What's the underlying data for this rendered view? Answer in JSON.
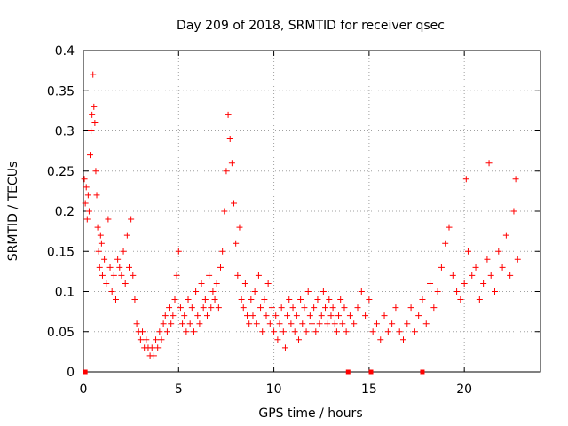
{
  "chart_data": {
    "type": "scatter",
    "title": "Day 209 of 2018, SRMTID for receiver qsec",
    "xlabel": "GPS time / hours",
    "ylabel": "SRMTID / TECUs",
    "xlim": [
      0,
      24
    ],
    "ylim": [
      0,
      0.4
    ],
    "grid": true,
    "marker": "+",
    "x_ticks": [
      0,
      5,
      10,
      15,
      20
    ],
    "x_tick_labels": [
      "0",
      "5",
      "10",
      "15",
      "20"
    ],
    "y_ticks": [
      0,
      0.05,
      0.1,
      0.15,
      0.2,
      0.25,
      0.3,
      0.35,
      0.4
    ],
    "y_tick_labels": [
      "0",
      "0.05",
      "0.1",
      "0.15",
      "0.2",
      "0.25",
      "0.3",
      "0.35",
      "0.4"
    ],
    "color": "#ff0000",
    "gap_markers": [
      0.1,
      13.9,
      15.1,
      17.8
    ],
    "series": [
      {
        "name": "SRMTID",
        "points": [
          [
            0.05,
            0.24
          ],
          [
            0.1,
            0.21
          ],
          [
            0.15,
            0.23
          ],
          [
            0.2,
            0.19
          ],
          [
            0.25,
            0.22
          ],
          [
            0.3,
            0.2
          ],
          [
            0.35,
            0.27
          ],
          [
            0.4,
            0.3
          ],
          [
            0.45,
            0.32
          ],
          [
            0.5,
            0.37
          ],
          [
            0.55,
            0.33
          ],
          [
            0.6,
            0.31
          ],
          [
            0.65,
            0.25
          ],
          [
            0.7,
            0.22
          ],
          [
            0.75,
            0.18
          ],
          [
            0.8,
            0.15
          ],
          [
            0.85,
            0.13
          ],
          [
            0.9,
            0.17
          ],
          [
            0.95,
            0.16
          ],
          [
            1.0,
            0.12
          ],
          [
            1.1,
            0.14
          ],
          [
            1.2,
            0.11
          ],
          [
            1.3,
            0.19
          ],
          [
            1.4,
            0.13
          ],
          [
            1.5,
            0.1
          ],
          [
            1.6,
            0.12
          ],
          [
            1.7,
            0.09
          ],
          [
            1.8,
            0.14
          ],
          [
            1.9,
            0.13
          ],
          [
            2.0,
            0.12
          ],
          [
            2.1,
            0.15
          ],
          [
            2.2,
            0.11
          ],
          [
            2.3,
            0.17
          ],
          [
            2.4,
            0.13
          ],
          [
            2.5,
            0.19
          ],
          [
            2.6,
            0.12
          ],
          [
            2.7,
            0.09
          ],
          [
            2.8,
            0.06
          ],
          [
            2.9,
            0.05
          ],
          [
            3.0,
            0.04
          ],
          [
            3.1,
            0.05
          ],
          [
            3.2,
            0.03
          ],
          [
            3.3,
            0.04
          ],
          [
            3.4,
            0.03
          ],
          [
            3.5,
            0.02
          ],
          [
            3.6,
            0.03
          ],
          [
            3.7,
            0.02
          ],
          [
            3.8,
            0.04
          ],
          [
            3.9,
            0.03
          ],
          [
            4.0,
            0.05
          ],
          [
            4.1,
            0.04
          ],
          [
            4.2,
            0.06
          ],
          [
            4.3,
            0.07
          ],
          [
            4.4,
            0.05
          ],
          [
            4.5,
            0.08
          ],
          [
            4.6,
            0.06
          ],
          [
            4.7,
            0.07
          ],
          [
            4.8,
            0.09
          ],
          [
            4.9,
            0.12
          ],
          [
            5.0,
            0.15
          ],
          [
            5.1,
            0.08
          ],
          [
            5.2,
            0.06
          ],
          [
            5.3,
            0.07
          ],
          [
            5.4,
            0.05
          ],
          [
            5.5,
            0.09
          ],
          [
            5.6,
            0.06
          ],
          [
            5.7,
            0.08
          ],
          [
            5.8,
            0.05
          ],
          [
            5.9,
            0.1
          ],
          [
            6.0,
            0.07
          ],
          [
            6.1,
            0.06
          ],
          [
            6.2,
            0.11
          ],
          [
            6.3,
            0.08
          ],
          [
            6.4,
            0.09
          ],
          [
            6.5,
            0.07
          ],
          [
            6.6,
            0.12
          ],
          [
            6.7,
            0.08
          ],
          [
            6.8,
            0.1
          ],
          [
            6.9,
            0.09
          ],
          [
            7.0,
            0.11
          ],
          [
            7.1,
            0.08
          ],
          [
            7.2,
            0.13
          ],
          [
            7.3,
            0.15
          ],
          [
            7.4,
            0.2
          ],
          [
            7.5,
            0.25
          ],
          [
            7.6,
            0.32
          ],
          [
            7.7,
            0.29
          ],
          [
            7.8,
            0.26
          ],
          [
            7.9,
            0.21
          ],
          [
            8.0,
            0.16
          ],
          [
            8.1,
            0.12
          ],
          [
            8.2,
            0.18
          ],
          [
            8.3,
            0.09
          ],
          [
            8.4,
            0.08
          ],
          [
            8.5,
            0.11
          ],
          [
            8.6,
            0.07
          ],
          [
            8.7,
            0.06
          ],
          [
            8.8,
            0.09
          ],
          [
            8.9,
            0.07
          ],
          [
            9.0,
            0.1
          ],
          [
            9.1,
            0.06
          ],
          [
            9.2,
            0.12
          ],
          [
            9.3,
            0.08
          ],
          [
            9.4,
            0.05
          ],
          [
            9.5,
            0.09
          ],
          [
            9.6,
            0.07
          ],
          [
            9.7,
            0.11
          ],
          [
            9.8,
            0.06
          ],
          [
            9.9,
            0.08
          ],
          [
            10.0,
            0.05
          ],
          [
            10.1,
            0.07
          ],
          [
            10.2,
            0.04
          ],
          [
            10.3,
            0.06
          ],
          [
            10.4,
            0.08
          ],
          [
            10.5,
            0.05
          ],
          [
            10.6,
            0.03
          ],
          [
            10.7,
            0.07
          ],
          [
            10.8,
            0.09
          ],
          [
            10.9,
            0.06
          ],
          [
            11.0,
            0.08
          ],
          [
            11.1,
            0.05
          ],
          [
            11.2,
            0.07
          ],
          [
            11.3,
            0.04
          ],
          [
            11.4,
            0.09
          ],
          [
            11.5,
            0.06
          ],
          [
            11.6,
            0.08
          ],
          [
            11.7,
            0.05
          ],
          [
            11.8,
            0.1
          ],
          [
            11.9,
            0.07
          ],
          [
            12.0,
            0.06
          ],
          [
            12.1,
            0.08
          ],
          [
            12.2,
            0.05
          ],
          [
            12.3,
            0.09
          ],
          [
            12.4,
            0.06
          ],
          [
            12.5,
            0.07
          ],
          [
            12.6,
            0.1
          ],
          [
            12.7,
            0.08
          ],
          [
            12.8,
            0.06
          ],
          [
            12.9,
            0.09
          ],
          [
            13.0,
            0.07
          ],
          [
            13.1,
            0.08
          ],
          [
            13.2,
            0.06
          ],
          [
            13.3,
            0.05
          ],
          [
            13.4,
            0.07
          ],
          [
            13.5,
            0.09
          ],
          [
            13.6,
            0.06
          ],
          [
            13.7,
            0.08
          ],
          [
            13.8,
            0.05
          ],
          [
            14.0,
            0.07
          ],
          [
            14.2,
            0.06
          ],
          [
            14.4,
            0.08
          ],
          [
            14.6,
            0.1
          ],
          [
            14.8,
            0.07
          ],
          [
            15.0,
            0.09
          ],
          [
            15.2,
            0.05
          ],
          [
            15.4,
            0.06
          ],
          [
            15.6,
            0.04
          ],
          [
            15.8,
            0.07
          ],
          [
            16.0,
            0.05
          ],
          [
            16.2,
            0.06
          ],
          [
            16.4,
            0.08
          ],
          [
            16.6,
            0.05
          ],
          [
            16.8,
            0.04
          ],
          [
            17.0,
            0.06
          ],
          [
            17.2,
            0.08
          ],
          [
            17.4,
            0.05
          ],
          [
            17.6,
            0.07
          ],
          [
            17.8,
            0.09
          ],
          [
            18.0,
            0.06
          ],
          [
            18.2,
            0.11
          ],
          [
            18.4,
            0.08
          ],
          [
            18.6,
            0.1
          ],
          [
            18.8,
            0.13
          ],
          [
            19.0,
            0.16
          ],
          [
            19.2,
            0.18
          ],
          [
            19.4,
            0.12
          ],
          [
            19.6,
            0.1
          ],
          [
            19.8,
            0.09
          ],
          [
            20.0,
            0.11
          ],
          [
            20.1,
            0.24
          ],
          [
            20.2,
            0.15
          ],
          [
            20.4,
            0.12
          ],
          [
            20.6,
            0.13
          ],
          [
            20.8,
            0.09
          ],
          [
            21.0,
            0.11
          ],
          [
            21.2,
            0.14
          ],
          [
            21.3,
            0.26
          ],
          [
            21.4,
            0.12
          ],
          [
            21.6,
            0.1
          ],
          [
            21.8,
            0.15
          ],
          [
            22.0,
            0.13
          ],
          [
            22.2,
            0.17
          ],
          [
            22.4,
            0.12
          ],
          [
            22.6,
            0.2
          ],
          [
            22.7,
            0.24
          ],
          [
            22.8,
            0.14
          ]
        ]
      }
    ]
  }
}
